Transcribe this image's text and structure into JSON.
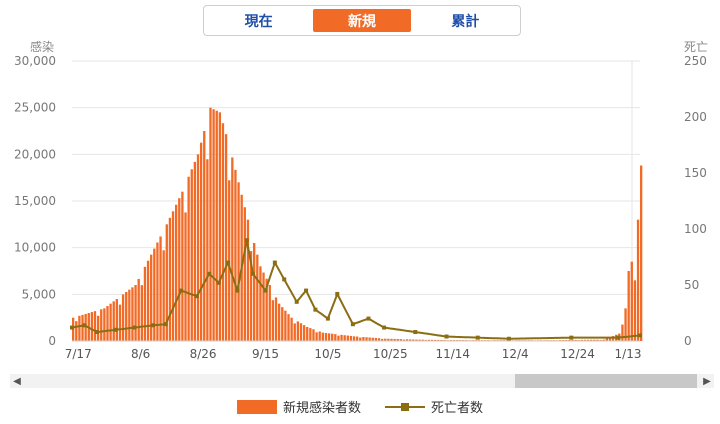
{
  "tabs": [
    {
      "label": "現在",
      "active": false
    },
    {
      "label": "新規",
      "active": true
    },
    {
      "label": "累計",
      "active": false
    }
  ],
  "colors": {
    "cases": "#f26b26",
    "deaths": "#8b6d12",
    "accent_text": "#1f4fa8"
  },
  "chart_data": {
    "type": "bar",
    "left_axis": {
      "title": "感染",
      "ticks": [
        "30,000",
        "25,000",
        "20,000",
        "15,000",
        "10,000",
        "5,000",
        "0"
      ],
      "range": [
        0,
        30000
      ]
    },
    "right_axis": {
      "title": "死亡",
      "ticks": [
        "250",
        "200",
        "150",
        "100",
        "50",
        "0"
      ],
      "range": [
        0,
        250
      ]
    },
    "x_ticks": [
      "7/17",
      "8/6",
      "8/26",
      "9/15",
      "10/5",
      "10/25",
      "11/14",
      "12/4",
      "12/24",
      "1/13"
    ],
    "series": [
      {
        "name": "新規感染者数",
        "kind": "bar",
        "axis": "left",
        "points": [
          [
            0,
            2500
          ],
          [
            10,
            3500
          ],
          [
            20,
            6000
          ],
          [
            30,
            12500
          ],
          [
            35,
            16000
          ],
          [
            40,
            20000
          ],
          [
            44,
            25000
          ],
          [
            47,
            24500
          ],
          [
            50,
            21000
          ],
          [
            53,
            17000
          ],
          [
            56,
            13000
          ],
          [
            60,
            8000
          ],
          [
            63,
            6000
          ],
          [
            66,
            4000
          ],
          [
            70,
            2500
          ],
          [
            75,
            1500
          ],
          [
            80,
            900
          ],
          [
            90,
            500
          ],
          [
            100,
            250
          ],
          [
            110,
            150
          ],
          [
            120,
            100
          ],
          [
            150,
            80
          ],
          [
            170,
            150
          ],
          [
            175,
            800
          ],
          [
            177,
            3500
          ],
          [
            178,
            7500
          ],
          [
            179,
            8500
          ],
          [
            180,
            6500
          ],
          [
            181,
            13000
          ],
          [
            182,
            18800
          ]
        ]
      },
      {
        "name": "死亡者数",
        "kind": "line",
        "axis": "right",
        "points": [
          [
            0,
            12
          ],
          [
            4,
            14
          ],
          [
            8,
            8
          ],
          [
            14,
            10
          ],
          [
            20,
            12
          ],
          [
            26,
            14
          ],
          [
            30,
            15
          ],
          [
            35,
            45
          ],
          [
            40,
            40
          ],
          [
            44,
            60
          ],
          [
            47,
            52
          ],
          [
            50,
            70
          ],
          [
            53,
            45
          ],
          [
            56,
            90
          ],
          [
            58,
            60
          ],
          [
            62,
            45
          ],
          [
            65,
            70
          ],
          [
            68,
            55
          ],
          [
            72,
            35
          ],
          [
            75,
            45
          ],
          [
            78,
            28
          ],
          [
            82,
            20
          ],
          [
            85,
            42
          ],
          [
            90,
            15
          ],
          [
            95,
            20
          ],
          [
            100,
            12
          ],
          [
            110,
            8
          ],
          [
            120,
            4
          ],
          [
            130,
            3
          ],
          [
            140,
            2
          ],
          [
            160,
            3
          ],
          [
            175,
            3
          ],
          [
            182,
            5
          ]
        ]
      }
    ],
    "legend": {
      "placement": "bottom"
    }
  }
}
